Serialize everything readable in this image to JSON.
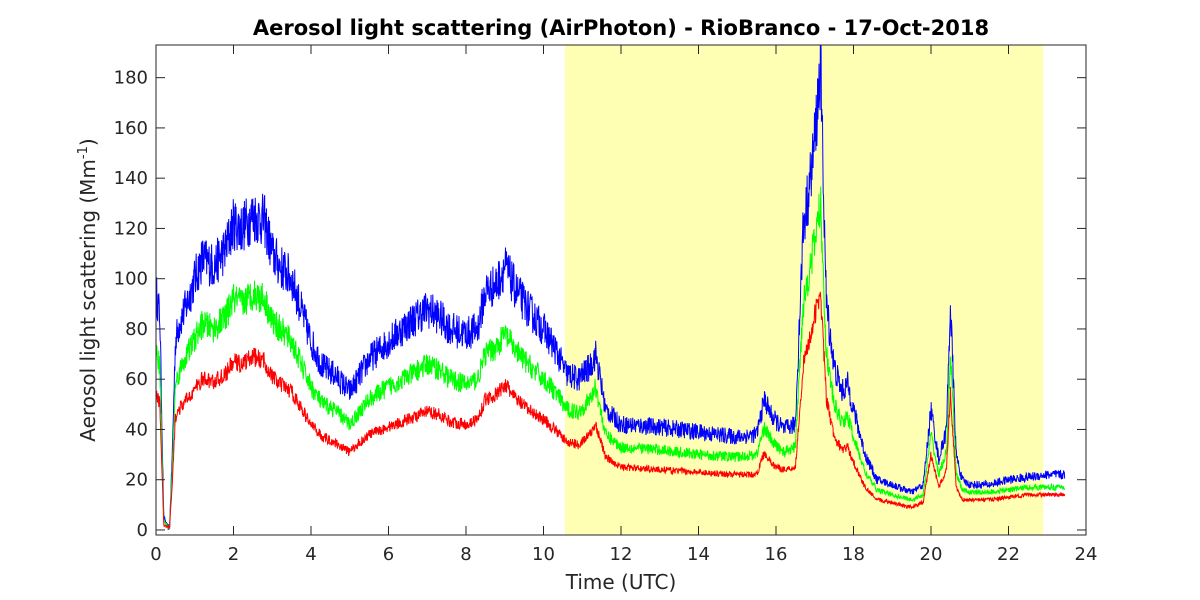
{
  "chart_data": {
    "type": "line",
    "title": "Aerosol light scattering (AirPhoton) - RioBranco - 17-Oct-2018",
    "xlabel": "Time (UTC)",
    "ylabel_main": "Aerosol light scattering (Mm",
    "ylabel_sup": "-1",
    "ylabel_end": ")",
    "xlim": [
      0,
      24
    ],
    "ylim": [
      -2,
      193
    ],
    "xticks": [
      0,
      2,
      4,
      6,
      8,
      10,
      12,
      14,
      16,
      18,
      20,
      22,
      24
    ],
    "yticks": [
      0,
      20,
      40,
      60,
      80,
      100,
      120,
      140,
      160,
      180
    ],
    "grid": false,
    "shaded_region": {
      "x_start": 10.55,
      "x_end": 22.9,
      "color": "#ffffb3"
    },
    "series": [
      {
        "color": "#0000ff",
        "noise": 3.5,
        "x": [
          0,
          0.1,
          0.2,
          0.3,
          0.35,
          0.42,
          0.5,
          0.6,
          0.8,
          1.0,
          1.2,
          1.5,
          1.8,
          2.0,
          2.2,
          2.5,
          2.8,
          3.0,
          3.2,
          3.5,
          3.8,
          4.0,
          4.3,
          4.6,
          5.0,
          5.2,
          5.5,
          6.0,
          6.5,
          7.0,
          7.3,
          7.6,
          8.0,
          8.3,
          8.5,
          8.8,
          9.0,
          9.3,
          9.6,
          10.0,
          10.3,
          10.6,
          10.9,
          11.2,
          11.35,
          11.6,
          12.0,
          13.0,
          14.0,
          15.0,
          15.5,
          15.7,
          15.9,
          16.2,
          16.5,
          16.7,
          16.85,
          17.0,
          17.15,
          17.3,
          17.5,
          17.7,
          17.85,
          18.0,
          18.3,
          18.6,
          19.0,
          19.5,
          19.8,
          20.0,
          20.2,
          20.4,
          20.5,
          20.65,
          20.8,
          21.0,
          21.5,
          22.0,
          22.5,
          23.0,
          23.45
        ],
        "y": [
          95,
          85,
          5,
          1,
          1,
          30,
          75,
          82,
          90,
          100,
          108,
          105,
          112,
          122,
          120,
          125,
          123,
          110,
          105,
          100,
          85,
          75,
          65,
          62,
          55,
          60,
          68,
          75,
          82,
          88,
          85,
          80,
          78,
          80,
          95,
          98,
          105,
          95,
          88,
          80,
          72,
          62,
          60,
          65,
          70,
          48,
          42,
          41,
          39,
          37,
          38,
          52,
          45,
          40,
          42,
          120,
          135,
          155,
          185,
          90,
          65,
          55,
          58,
          48,
          30,
          20,
          18,
          15,
          18,
          48,
          28,
          40,
          90,
          30,
          20,
          18,
          18,
          20,
          21,
          22,
          22
        ]
      },
      {
        "color": "#00ff00",
        "noise": 2.8,
        "x": [
          0,
          0.1,
          0.2,
          0.3,
          0.35,
          0.42,
          0.5,
          0.6,
          0.8,
          1.0,
          1.2,
          1.5,
          1.8,
          2.0,
          2.2,
          2.5,
          2.8,
          3.0,
          3.2,
          3.5,
          3.8,
          4.0,
          4.3,
          4.6,
          5.0,
          5.2,
          5.5,
          6.0,
          6.5,
          7.0,
          7.3,
          7.6,
          8.0,
          8.3,
          8.5,
          8.8,
          9.0,
          9.3,
          9.6,
          10.0,
          10.3,
          10.6,
          10.9,
          11.2,
          11.35,
          11.6,
          12.0,
          13.0,
          14.0,
          15.0,
          15.5,
          15.7,
          15.9,
          16.2,
          16.5,
          16.7,
          16.85,
          17.0,
          17.15,
          17.3,
          17.5,
          17.7,
          17.85,
          18.0,
          18.3,
          18.6,
          19.0,
          19.5,
          19.8,
          20.0,
          20.2,
          20.4,
          20.5,
          20.65,
          20.8,
          21.0,
          21.5,
          22.0,
          22.5,
          23.0,
          23.45
        ],
        "y": [
          72,
          65,
          4,
          1,
          1,
          24,
          58,
          63,
          70,
          76,
          82,
          80,
          85,
          92,
          90,
          94,
          92,
          83,
          80,
          75,
          64,
          57,
          50,
          48,
          42,
          46,
          52,
          57,
          61,
          66,
          64,
          60,
          58,
          60,
          70,
          73,
          78,
          71,
          66,
          60,
          55,
          48,
          47,
          52,
          57,
          38,
          33,
          32,
          30,
          29,
          30,
          41,
          35,
          31,
          33,
          90,
          102,
          115,
          130,
          70,
          50,
          43,
          45,
          37,
          23,
          16,
          14,
          12,
          14,
          38,
          22,
          31,
          70,
          23,
          16,
          15,
          15,
          16,
          17,
          17,
          17
        ]
      },
      {
        "color": "#ff0000",
        "noise": 2.2,
        "x": [
          0,
          0.1,
          0.2,
          0.3,
          0.35,
          0.42,
          0.5,
          0.6,
          0.8,
          1.0,
          1.2,
          1.5,
          1.8,
          2.0,
          2.2,
          2.5,
          2.8,
          3.0,
          3.2,
          3.5,
          3.8,
          4.0,
          4.3,
          4.6,
          5.0,
          5.2,
          5.5,
          6.0,
          6.5,
          7.0,
          7.3,
          7.6,
          8.0,
          8.3,
          8.5,
          8.8,
          9.0,
          9.3,
          9.6,
          10.0,
          10.3,
          10.6,
          10.9,
          11.2,
          11.35,
          11.6,
          12.0,
          13.0,
          14.0,
          15.0,
          15.5,
          15.7,
          15.9,
          16.2,
          16.5,
          16.7,
          16.85,
          17.0,
          17.15,
          17.3,
          17.5,
          17.7,
          17.85,
          18.0,
          18.3,
          18.6,
          19.0,
          19.5,
          19.8,
          20.0,
          20.2,
          20.4,
          20.5,
          20.65,
          20.8,
          21.0,
          21.5,
          22.0,
          22.5,
          23.0,
          23.45
        ],
        "y": [
          55,
          50,
          2,
          1,
          1,
          18,
          45,
          48,
          52,
          56,
          60,
          59,
          62,
          67,
          66,
          69,
          67,
          61,
          58,
          55,
          47,
          42,
          37,
          35,
          31,
          34,
          38,
          41,
          44,
          47,
          46,
          43,
          42,
          44,
          52,
          54,
          58,
          52,
          48,
          44,
          40,
          35,
          34,
          38,
          42,
          29,
          25,
          24,
          23,
          22,
          22,
          31,
          26,
          24,
          25,
          65,
          75,
          85,
          95,
          52,
          37,
          32,
          33,
          27,
          17,
          12,
          11,
          9,
          11,
          30,
          17,
          24,
          55,
          17,
          12,
          12,
          12,
          13,
          14,
          14,
          14
        ]
      }
    ]
  }
}
